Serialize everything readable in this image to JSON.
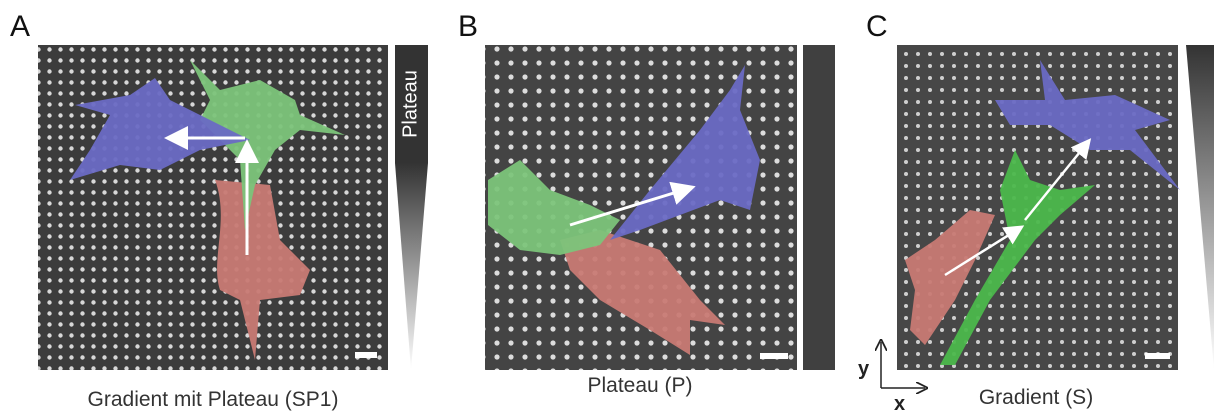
{
  "panels": [
    {
      "letter": "A",
      "caption": "Gradient mit Plateau (SP1)",
      "bar_label": "Plateau"
    },
    {
      "letter": "B",
      "caption": "Plateau (P)"
    },
    {
      "letter": "C",
      "caption": "Gradient (S)"
    }
  ],
  "axes": {
    "y": "y",
    "x": "x"
  }
}
